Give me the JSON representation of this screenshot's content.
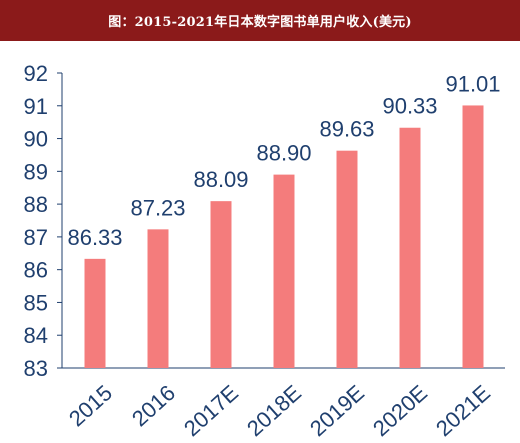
{
  "title": "图：2015-2021年日本数字图书单用户收入(美元)",
  "colors": {
    "title_background": "#8b1a1a",
    "bar": "#f47c7c",
    "text": "#1f3f6e",
    "axis": "#1f3f6e"
  },
  "chart_data": {
    "type": "bar",
    "title": "图：2015-2021年日本数字图书单用户收入(美元)",
    "categories": [
      "2015",
      "2016",
      "2017E",
      "2018E",
      "2019E",
      "2020E",
      "2021E"
    ],
    "values": [
      86.33,
      87.23,
      88.09,
      88.9,
      89.63,
      90.33,
      91.01
    ],
    "value_labels": [
      "86.33",
      "87.23",
      "88.09",
      "88.90",
      "89.63",
      "90.33",
      "91.01"
    ],
    "ylim": [
      83,
      92
    ],
    "yticks": [
      "83",
      "84",
      "85",
      "86",
      "87",
      "88",
      "89",
      "90",
      "91",
      "92"
    ],
    "xlabel": "",
    "ylabel": "",
    "grid": false,
    "legend": "none"
  }
}
